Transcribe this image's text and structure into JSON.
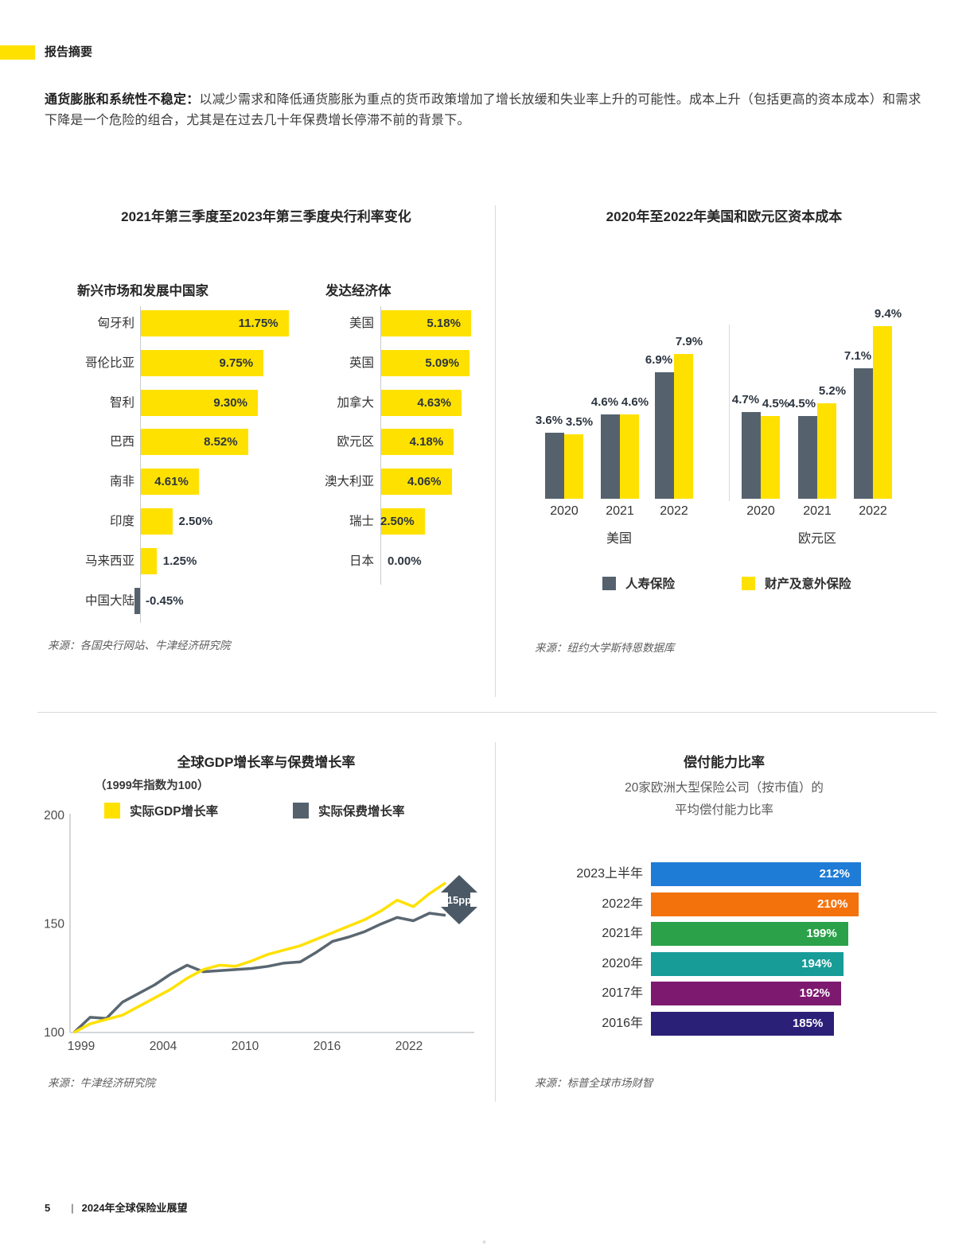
{
  "page": {
    "header_label": "报告摘要",
    "intro_lead": "通货膨胀和系统性不稳定：",
    "intro_text": "以减少需求和降低通货膨胀为重点的货币政策增加了增长放缓和失业率上升的可能性。成本上升（包括更高的资本成本）和需求下降是一个危险的组合，尤其是在过去几十年保费增长停滞不前的背景下。",
    "footer_page_number": "5",
    "footer_title": "2024年全球保险业展望",
    "artifact": "*"
  },
  "colors": {
    "accent_yellow": "#FFE100",
    "slate": "#55626D",
    "diamond": "#4A5965",
    "divider": "#DADADA"
  },
  "chart_data": [
    {
      "id": "central-bank-rates",
      "type": "bar",
      "title": "2021年第三季度至2023年第三季度央行利率变化",
      "groups": [
        {
          "label": "新兴市场和发展中国家",
          "categories": [
            "匈牙利",
            "哥伦比亚",
            "智利",
            "巴西",
            "南非",
            "印度",
            "马来西亚",
            "中国大陆"
          ],
          "values": [
            11.75,
            9.75,
            9.3,
            8.52,
            4.61,
            2.5,
            1.25,
            -0.45
          ],
          "labels": [
            "11.75%",
            "9.75%",
            "9.30%",
            "8.52%",
            "4.61%",
            "2.50%",
            "1.25%",
            "-0.45%"
          ]
        },
        {
          "label": "发达经济体",
          "categories": [
            "美国",
            "英国",
            "加拿大",
            "欧元区",
            "澳大利亚",
            "瑞士",
            "日本"
          ],
          "values": [
            5.18,
            5.09,
            4.63,
            4.18,
            4.06,
            2.5,
            0.0
          ],
          "labels": [
            "5.18%",
            "5.09%",
            "4.63%",
            "4.18%",
            "4.06%",
            "2.50%",
            "0.00%"
          ]
        }
      ],
      "source": "来源：各国央行网站、牛津经济研究院"
    },
    {
      "id": "cost-of-capital",
      "type": "bar",
      "title": "2020年至2022年美国和欧元区资本成本",
      "categories": [
        "2020",
        "2021",
        "2022"
      ],
      "legend": [
        "人寿保险",
        "财产及意外保险"
      ],
      "groups": [
        {
          "label": "美国",
          "series": [
            {
              "name": "人寿保险",
              "values": [
                3.6,
                4.6,
                6.9
              ]
            },
            {
              "name": "财产及意外保险",
              "values": [
                3.5,
                4.6,
                7.9
              ]
            }
          ]
        },
        {
          "label": "欧元区",
          "series": [
            {
              "name": "人寿保险",
              "values": [
                4.7,
                4.5,
                7.1
              ]
            },
            {
              "name": "财产及意外保险",
              "values": [
                4.5,
                5.2,
                9.4
              ]
            }
          ]
        }
      ],
      "source": "来源：纽约大学斯特恩数据库"
    },
    {
      "id": "gdp-vs-premium",
      "type": "line",
      "title": "全球GDP增长率与保费增长率",
      "subtitle": "（1999年指数为100）",
      "x": [
        1999,
        2000,
        2001,
        2002,
        2003,
        2004,
        2005,
        2006,
        2007,
        2008,
        2009,
        2010,
        2011,
        2012,
        2013,
        2014,
        2015,
        2016,
        2017,
        2018,
        2019,
        2020,
        2021,
        2022
      ],
      "series": [
        {
          "name": "实际GDP增长率",
          "color": "#FFE100",
          "values": [
            100,
            104,
            106,
            108,
            112,
            116,
            120,
            125,
            129,
            131,
            130.5,
            133,
            136,
            138,
            140,
            143,
            146,
            149,
            152,
            156,
            161,
            158,
            164,
            169
          ]
        },
        {
          "name": "实际保费增长率",
          "color": "#5A6771",
          "values": [
            100,
            107,
            106.5,
            114,
            118,
            122,
            127,
            131,
            128,
            128.5,
            129,
            129.5,
            130.5,
            132,
            132.5,
            137,
            142,
            144,
            146.5,
            150,
            153,
            151.5,
            155,
            154
          ]
        }
      ],
      "ylim": [
        100,
        200
      ],
      "yticks": [
        "100",
        "150",
        "200"
      ],
      "xticks": [
        "1999",
        "2004",
        "2010",
        "2016",
        "2022"
      ],
      "annotation": "15pp",
      "grid": false,
      "legend_position": "top",
      "source": "来源：牛津经济研究院"
    },
    {
      "id": "solvency-ratio",
      "type": "bar",
      "title": "偿付能力比率",
      "subtitle1": "20家欧洲大型保险公司（按市值）的",
      "subtitle2": "平均偿付能力比率",
      "categories": [
        "2023上半年",
        "2022年",
        "2021年",
        "2020年",
        "2017年",
        "2016年"
      ],
      "values": [
        212,
        210,
        199,
        194,
        192,
        185
      ],
      "labels": [
        "212%",
        "210%",
        "199%",
        "194%",
        "192%",
        "185%"
      ],
      "bar_colors": [
        "#1E7CD6",
        "#F4720C",
        "#2BA149",
        "#179C98",
        "#7D1A70",
        "#2B2077"
      ],
      "source": "来源：标普全球市场财智"
    }
  ]
}
